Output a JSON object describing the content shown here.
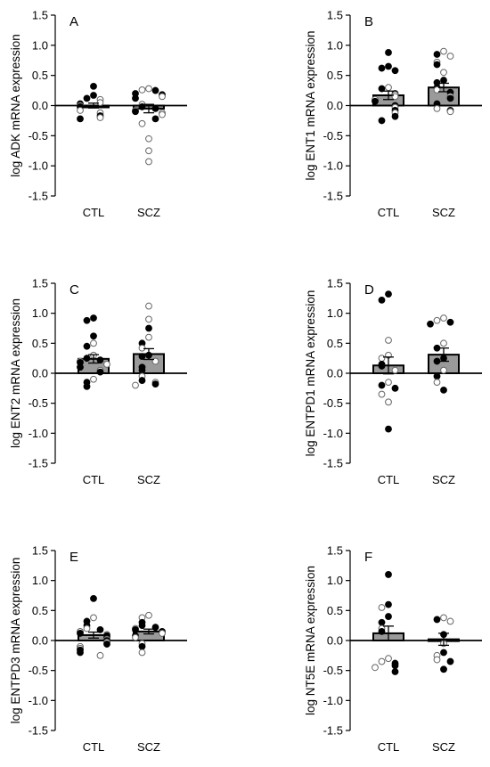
{
  "chart_data": [
    {
      "type": "scatter",
      "panel": "A",
      "ylabel": "log ADK mRNA expression",
      "categories": [
        "CTL",
        "SCZ"
      ],
      "ylim": [
        -1.5,
        1.5
      ],
      "yticks": [
        "1.5",
        "1.0",
        "0.5",
        "0.0",
        "-0.5",
        "-1.0",
        "-1.5"
      ],
      "bars": [
        {
          "mean": 0.0,
          "sem": 0.04
        },
        {
          "mean": -0.05,
          "sem": 0.07
        }
      ],
      "points": [
        [
          {
            "v": 0.32,
            "f": 1
          },
          {
            "v": 0.17,
            "f": 1
          },
          {
            "v": 0.12,
            "f": 1
          },
          {
            "v": 0.1,
            "f": 0
          },
          {
            "v": 0.05,
            "f": 0
          },
          {
            "v": 0.03,
            "f": 1
          },
          {
            "v": 0.0,
            "f": 0
          },
          {
            "v": -0.02,
            "f": 1
          },
          {
            "v": -0.08,
            "f": 0
          },
          {
            "v": -0.12,
            "f": 0
          },
          {
            "v": -0.17,
            "f": 1
          },
          {
            "v": -0.2,
            "f": 0
          },
          {
            "v": -0.22,
            "f": 1
          }
        ],
        [
          {
            "v": 0.28,
            "f": 0
          },
          {
            "v": 0.26,
            "f": 0
          },
          {
            "v": 0.25,
            "f": 1
          },
          {
            "v": 0.2,
            "f": 1
          },
          {
            "v": 0.18,
            "f": 1
          },
          {
            "v": 0.15,
            "f": 0
          },
          {
            "v": 0.12,
            "f": 1
          },
          {
            "v": 0.02,
            "f": 0
          },
          {
            "v": -0.02,
            "f": 1
          },
          {
            "v": -0.05,
            "f": 1
          },
          {
            "v": -0.08,
            "f": 0
          },
          {
            "v": -0.1,
            "f": 1
          },
          {
            "v": -0.12,
            "f": 0
          },
          {
            "v": -0.15,
            "f": 0
          },
          {
            "v": -0.22,
            "f": 1
          },
          {
            "v": -0.3,
            "f": 0
          },
          {
            "v": -0.55,
            "f": 0
          },
          {
            "v": -0.75,
            "f": 0
          },
          {
            "v": -0.93,
            "f": 0
          }
        ]
      ]
    },
    {
      "type": "scatter",
      "panel": "B",
      "ylabel": "log ENT1 mRNA expression",
      "categories": [
        "CTL",
        "SCZ"
      ],
      "ylim": [
        -1.5,
        1.5
      ],
      "yticks": [
        "1.5",
        "1.0",
        "0.5",
        "0.0",
        "-0.5",
        "-1.0",
        "-1.5"
      ],
      "bars": [
        {
          "mean": 0.17,
          "sem": 0.07
        },
        {
          "mean": 0.3,
          "sem": 0.07
        }
      ],
      "points": [
        [
          {
            "v": 0.88,
            "f": 1
          },
          {
            "v": 0.65,
            "f": 1
          },
          {
            "v": 0.62,
            "f": 1
          },
          {
            "v": 0.58,
            "f": 1
          },
          {
            "v": 0.3,
            "f": 0
          },
          {
            "v": 0.28,
            "f": 1
          },
          {
            "v": 0.2,
            "f": 1
          },
          {
            "v": 0.18,
            "f": 0
          },
          {
            "v": 0.15,
            "f": 0
          },
          {
            "v": 0.1,
            "f": 0
          },
          {
            "v": 0.07,
            "f": 1
          },
          {
            "v": 0.0,
            "f": 1
          },
          {
            "v": -0.03,
            "f": 0
          },
          {
            "v": -0.08,
            "f": 1
          },
          {
            "v": -0.12,
            "f": 0
          },
          {
            "v": -0.18,
            "f": 1
          },
          {
            "v": -0.25,
            "f": 1
          }
        ],
        [
          {
            "v": 0.9,
            "f": 0
          },
          {
            "v": 0.85,
            "f": 1
          },
          {
            "v": 0.82,
            "f": 0
          },
          {
            "v": 0.72,
            "f": 0
          },
          {
            "v": 0.68,
            "f": 1
          },
          {
            "v": 0.55,
            "f": 0
          },
          {
            "v": 0.42,
            "f": 1
          },
          {
            "v": 0.38,
            "f": 1
          },
          {
            "v": 0.3,
            "f": 1
          },
          {
            "v": 0.26,
            "f": 0
          },
          {
            "v": 0.22,
            "f": 1
          },
          {
            "v": 0.15,
            "f": 0
          },
          {
            "v": 0.12,
            "f": 1
          },
          {
            "v": 0.03,
            "f": 1
          },
          {
            "v": -0.05,
            "f": 0
          },
          {
            "v": -0.08,
            "f": 1
          },
          {
            "v": -0.1,
            "f": 0
          }
        ]
      ]
    },
    {
      "type": "scatter",
      "panel": "C",
      "ylabel": "log ENT2 mRNA expression",
      "categories": [
        "CTL",
        "SCZ"
      ],
      "ylim": [
        -1.5,
        1.5
      ],
      "yticks": [
        "1.5",
        "1.0",
        "0.5",
        "0.0",
        "-0.5",
        "-1.0",
        "-1.5"
      ],
      "bars": [
        {
          "mean": 0.24,
          "sem": 0.07
        },
        {
          "mean": 0.32,
          "sem": 0.09
        }
      ],
      "points": [
        [
          {
            "v": 0.92,
            "f": 1
          },
          {
            "v": 0.88,
            "f": 1
          },
          {
            "v": 0.62,
            "f": 1
          },
          {
            "v": 0.5,
            "f": 0
          },
          {
            "v": 0.45,
            "f": 1
          },
          {
            "v": 0.3,
            "f": 0
          },
          {
            "v": 0.25,
            "f": 1
          },
          {
            "v": 0.22,
            "f": 1
          },
          {
            "v": 0.2,
            "f": 0
          },
          {
            "v": 0.18,
            "f": 1
          },
          {
            "v": 0.15,
            "f": 0
          },
          {
            "v": 0.1,
            "f": 1
          },
          {
            "v": 0.05,
            "f": 0
          },
          {
            "v": 0.02,
            "f": 1
          },
          {
            "v": -0.1,
            "f": 0
          },
          {
            "v": -0.15,
            "f": 1
          },
          {
            "v": -0.22,
            "f": 1
          }
        ],
        [
          {
            "v": 1.12,
            "f": 0
          },
          {
            "v": 0.9,
            "f": 0
          },
          {
            "v": 0.75,
            "f": 1
          },
          {
            "v": 0.6,
            "f": 0
          },
          {
            "v": 0.5,
            "f": 1
          },
          {
            "v": 0.42,
            "f": 0
          },
          {
            "v": 0.3,
            "f": 1
          },
          {
            "v": 0.28,
            "f": 1
          },
          {
            "v": 0.2,
            "f": 0
          },
          {
            "v": 0.1,
            "f": 1
          },
          {
            "v": 0.05,
            "f": 1
          },
          {
            "v": -0.05,
            "f": 0
          },
          {
            "v": -0.12,
            "f": 1
          },
          {
            "v": -0.15,
            "f": 0
          },
          {
            "v": -0.18,
            "f": 1
          },
          {
            "v": -0.2,
            "f": 0
          }
        ]
      ]
    },
    {
      "type": "scatter",
      "panel": "D",
      "ylabel": "log ENTPD1 mRNA expression",
      "categories": [
        "CTL",
        "SCZ"
      ],
      "ylim": [
        -1.5,
        1.5
      ],
      "yticks": [
        "1.5",
        "1.0",
        "0.5",
        "0.0",
        "-0.5",
        "-1.0",
        "-1.5"
      ],
      "bars": [
        {
          "mean": 0.13,
          "sem": 0.14
        },
        {
          "mean": 0.31,
          "sem": 0.11
        }
      ],
      "points": [
        [
          {
            "v": 1.32,
            "f": 1
          },
          {
            "v": 1.22,
            "f": 1
          },
          {
            "v": 0.55,
            "f": 0
          },
          {
            "v": 0.3,
            "f": 0
          },
          {
            "v": 0.25,
            "f": 0
          },
          {
            "v": 0.15,
            "f": 1
          },
          {
            "v": 0.12,
            "f": 1
          },
          {
            "v": 0.05,
            "f": 0
          },
          {
            "v": -0.15,
            "f": 0
          },
          {
            "v": -0.2,
            "f": 1
          },
          {
            "v": -0.25,
            "f": 1
          },
          {
            "v": -0.35,
            "f": 0
          },
          {
            "v": -0.48,
            "f": 0
          },
          {
            "v": -0.93,
            "f": 1
          }
        ],
        [
          {
            "v": 0.92,
            "f": 0
          },
          {
            "v": 0.88,
            "f": 0
          },
          {
            "v": 0.85,
            "f": 1
          },
          {
            "v": 0.82,
            "f": 1
          },
          {
            "v": 0.5,
            "f": 0
          },
          {
            "v": 0.42,
            "f": 1
          },
          {
            "v": 0.25,
            "f": 1
          },
          {
            "v": 0.2,
            "f": 1
          },
          {
            "v": 0.05,
            "f": 0
          },
          {
            "v": -0.05,
            "f": 1
          },
          {
            "v": -0.15,
            "f": 0
          },
          {
            "v": -0.28,
            "f": 1
          }
        ]
      ]
    },
    {
      "type": "scatter",
      "panel": "E",
      "ylabel": "log ENTPD3 mRNA expression",
      "categories": [
        "CTL",
        "SCZ"
      ],
      "ylim": [
        -1.5,
        1.5
      ],
      "yticks": [
        "1.5",
        "1.0",
        "0.5",
        "0.0",
        "-0.5",
        "-1.0",
        "-1.5"
      ],
      "bars": [
        {
          "mean": 0.09,
          "sem": 0.05
        },
        {
          "mean": 0.15,
          "sem": 0.04
        }
      ],
      "points": [
        [
          {
            "v": 0.7,
            "f": 1
          },
          {
            "v": 0.38,
            "f": 0
          },
          {
            "v": 0.32,
            "f": 1
          },
          {
            "v": 0.25,
            "f": 1
          },
          {
            "v": 0.2,
            "f": 0
          },
          {
            "v": 0.18,
            "f": 1
          },
          {
            "v": 0.15,
            "f": 0
          },
          {
            "v": 0.12,
            "f": 1
          },
          {
            "v": 0.1,
            "f": 0
          },
          {
            "v": 0.08,
            "f": 1
          },
          {
            "v": 0.05,
            "f": 1
          },
          {
            "v": 0.02,
            "f": 0
          },
          {
            "v": 0.0,
            "f": 1
          },
          {
            "v": -0.03,
            "f": 0
          },
          {
            "v": -0.06,
            "f": 1
          },
          {
            "v": -0.1,
            "f": 0
          },
          {
            "v": -0.13,
            "f": 0
          },
          {
            "v": -0.16,
            "f": 1
          },
          {
            "v": -0.2,
            "f": 1
          },
          {
            "v": -0.25,
            "f": 0
          }
        ],
        [
          {
            "v": 0.42,
            "f": 0
          },
          {
            "v": 0.38,
            "f": 0
          },
          {
            "v": 0.3,
            "f": 1
          },
          {
            "v": 0.25,
            "f": 1
          },
          {
            "v": 0.22,
            "f": 1
          },
          {
            "v": 0.2,
            "f": 0
          },
          {
            "v": 0.18,
            "f": 1
          },
          {
            "v": 0.15,
            "f": 1
          },
          {
            "v": 0.12,
            "f": 0
          },
          {
            "v": 0.08,
            "f": 1
          },
          {
            "v": 0.05,
            "f": 0
          },
          {
            "v": -0.05,
            "f": 0
          },
          {
            "v": -0.1,
            "f": 1
          },
          {
            "v": -0.2,
            "f": 0
          }
        ]
      ]
    },
    {
      "type": "scatter",
      "panel": "F",
      "ylabel": "log NT5E mRNA expression",
      "categories": [
        "CTL",
        "SCZ"
      ],
      "ylim": [
        -1.5,
        1.5
      ],
      "yticks": [
        "1.5",
        "1.0",
        "0.5",
        "0.0",
        "-0.5",
        "-1.0",
        "-1.5"
      ],
      "bars": [
        {
          "mean": 0.12,
          "sem": 0.12
        },
        {
          "mean": 0.02,
          "sem": 0.1
        }
      ],
      "points": [
        [
          {
            "v": 1.1,
            "f": 1
          },
          {
            "v": 0.6,
            "f": 1
          },
          {
            "v": 0.55,
            "f": 0
          },
          {
            "v": 0.4,
            "f": 1
          },
          {
            "v": 0.3,
            "f": 1
          },
          {
            "v": 0.2,
            "f": 0
          },
          {
            "v": 0.15,
            "f": 1
          },
          {
            "v": -0.3,
            "f": 0
          },
          {
            "v": -0.35,
            "f": 0
          },
          {
            "v": -0.38,
            "f": 1
          },
          {
            "v": -0.42,
            "f": 1
          },
          {
            "v": -0.45,
            "f": 0
          },
          {
            "v": -0.52,
            "f": 1
          }
        ],
        [
          {
            "v": 0.38,
            "f": 0
          },
          {
            "v": 0.35,
            "f": 1
          },
          {
            "v": 0.32,
            "f": 0
          },
          {
            "v": 0.1,
            "f": 1
          },
          {
            "v": -0.05,
            "f": 0
          },
          {
            "v": -0.2,
            "f": 1
          },
          {
            "v": -0.25,
            "f": 0
          },
          {
            "v": -0.32,
            "f": 0
          },
          {
            "v": -0.35,
            "f": 1
          },
          {
            "v": -0.48,
            "f": 1
          }
        ]
      ]
    }
  ]
}
